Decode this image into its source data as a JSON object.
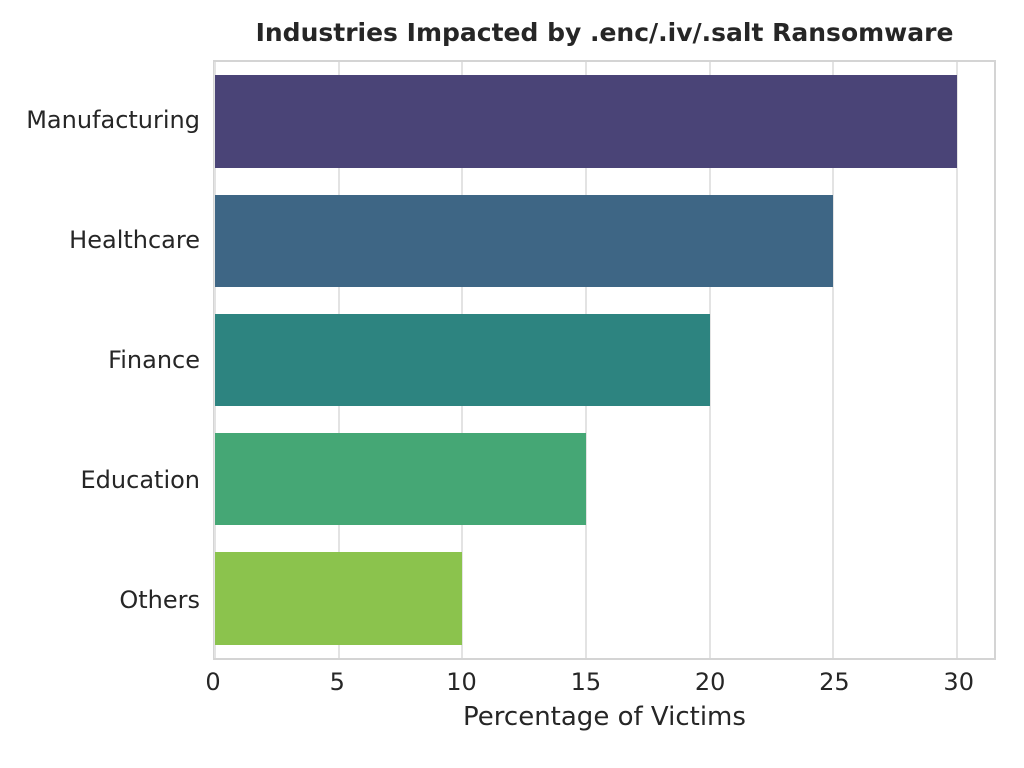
{
  "chart_data": {
    "type": "bar",
    "orientation": "horizontal",
    "title": "Industries Impacted by .enc/.iv/.salt Ransomware",
    "xlabel": "Percentage of Victims",
    "ylabel": "",
    "categories": [
      "Manufacturing",
      "Healthcare",
      "Finance",
      "Education",
      "Others"
    ],
    "values": [
      30,
      25,
      20,
      15,
      10
    ],
    "bar_colors": [
      "#4a4477",
      "#3e6685",
      "#2d8480",
      "#45a775",
      "#8bc34d"
    ],
    "xticks": [
      0,
      5,
      10,
      15,
      20,
      25,
      30
    ],
    "xlim": [
      0,
      31.5
    ],
    "grid": "vertical",
    "legend": "none",
    "style": {
      "background_color": "#ffffff",
      "grid_color": "#e3e3e3",
      "spine_color": "#d4d4d4",
      "text_color": "#262626"
    }
  }
}
